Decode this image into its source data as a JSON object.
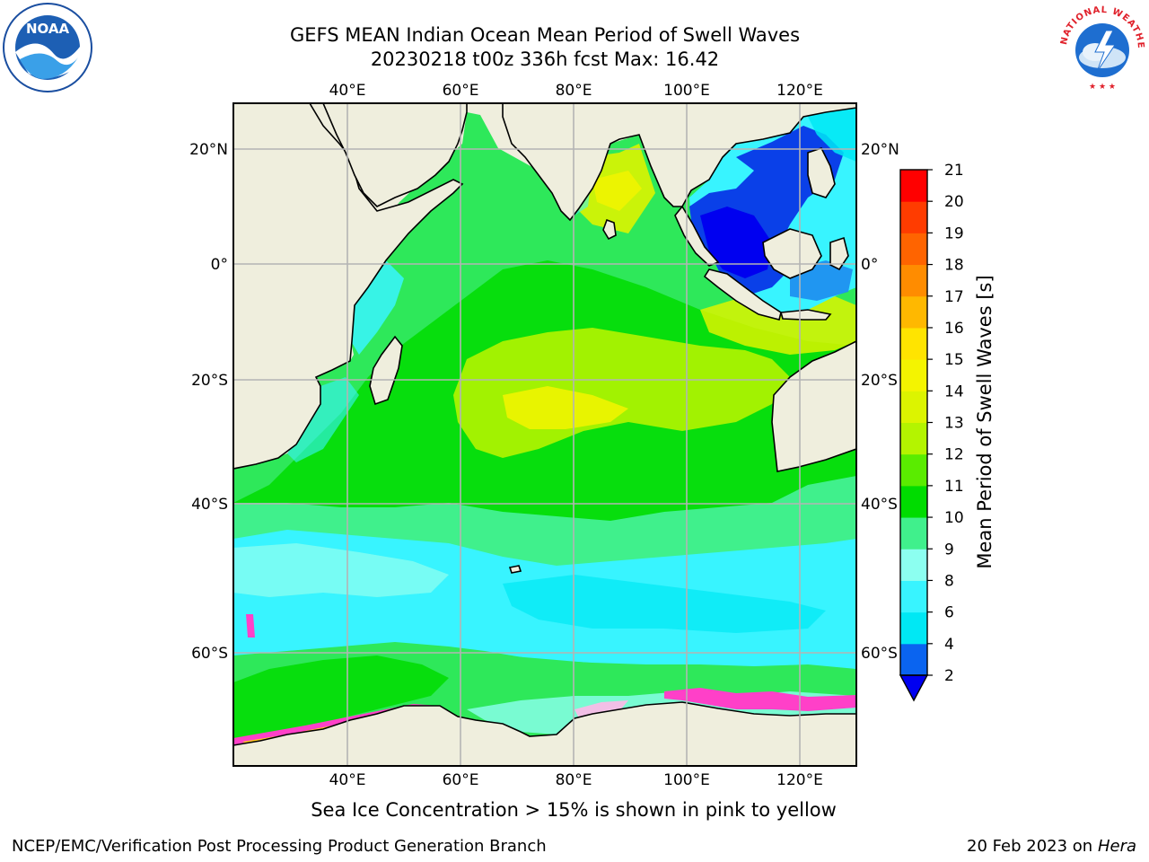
{
  "title_line1": "GEFS MEAN Indian Ocean Mean Period of Swell Waves",
  "title_line2": "20230218 t00z 336h fcst   Max: 16.42",
  "longitude_labels": [
    "40°E",
    "60°E",
    "80°E",
    "100°E",
    "120°E"
  ],
  "latitude_labels": [
    "20°N",
    "0°",
    "20°S",
    "40°S",
    "60°S"
  ],
  "colorbar": {
    "label": "Mean Period of Swell Waves [s]",
    "ticks": [
      "2",
      "4",
      "6",
      "8",
      "9",
      "10",
      "11",
      "12",
      "13",
      "14",
      "15",
      "16",
      "17",
      "18",
      "19",
      "20",
      "21"
    ],
    "colors": [
      "#0a64f0",
      "#00e8f4",
      "#38f4ff",
      "#8cfff0",
      "#40f08c",
      "#00dc00",
      "#5aec00",
      "#b4f400",
      "#dcf400",
      "#f4f400",
      "#ffe400",
      "#ffb800",
      "#ff8c00",
      "#ff6400",
      "#ff3c00",
      "#ff0000"
    ],
    "under_color": "#0000f0"
  },
  "colors": {
    "land": "#efeedd",
    "ocean_base": "#2ee85a",
    "grid": "#b4b4b4",
    "sea_ice": "#ff40c8"
  },
  "sea_ice_note": "Sea Ice Concentration > 15% is shown in pink to yellow",
  "footer_left": "NCEP/EMC/Verification Post Processing Product Generation Branch",
  "footer_date": "20 Feb 2023 on",
  "footer_system": "Hera",
  "noaa_logo_text": "NOAA",
  "nws_logo_text": "NATIONAL WEATHER SERVICE"
}
